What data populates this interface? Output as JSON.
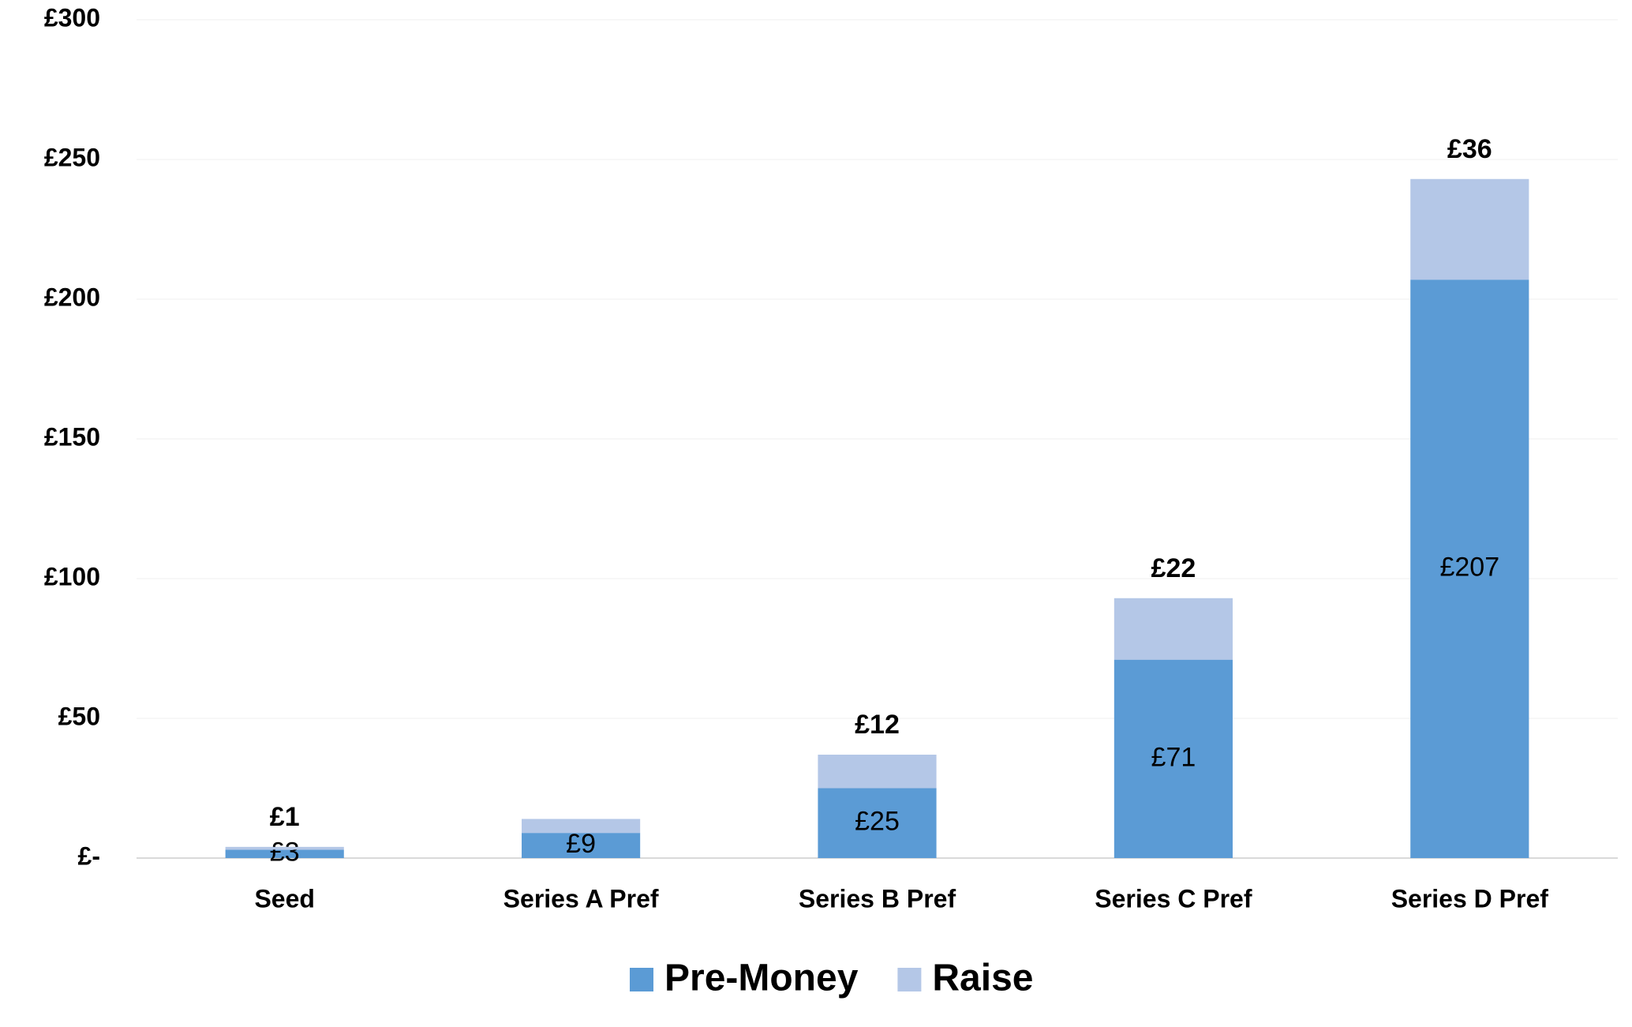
{
  "chart_data": {
    "type": "stacked_bar",
    "categories": [
      "Seed",
      "Series A Pref",
      "Series B Pref",
      "Series C Pref",
      "Series D Pref"
    ],
    "series": [
      {
        "name": "Pre-Money",
        "color": "#5b9bd5",
        "values": [
          3,
          9,
          25,
          71,
          207
        ],
        "value_labels": [
          "£3",
          "£9",
          "£25",
          "£71",
          "£207"
        ]
      },
      {
        "name": "Raise",
        "color": "#b4c7e7",
        "values": [
          1,
          5,
          12,
          22,
          36
        ],
        "value_labels": [
          "£1",
          null,
          "£12",
          "£22",
          "£36"
        ]
      }
    ],
    "ylim": [
      0,
      300
    ],
    "yticks": [
      {
        "value": 0,
        "label": "£-"
      },
      {
        "value": 50,
        "label": "£50"
      },
      {
        "value": 100,
        "label": "£100"
      },
      {
        "value": 150,
        "label": "£150"
      },
      {
        "value": 200,
        "label": "£200"
      },
      {
        "value": 250,
        "label": "£250"
      },
      {
        "value": 300,
        "label": "£300"
      }
    ],
    "grid": true,
    "legend": "bottom"
  }
}
